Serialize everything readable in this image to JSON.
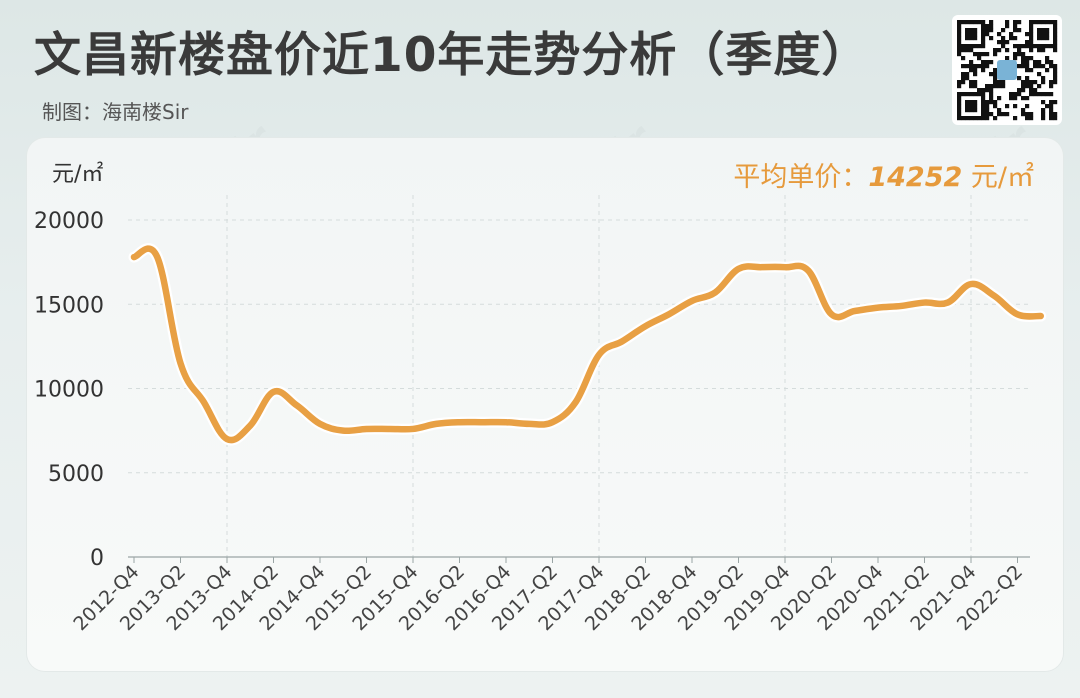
{
  "header": {
    "title": "文昌新楼盘价近10年走势分析（季度）",
    "subtitle": "制图：海南楼Sir"
  },
  "watermark": "@海南楼Sir",
  "unit_label": "元/㎡",
  "average": {
    "label": "平均单价：",
    "value": "14252",
    "unit": "元/㎡"
  },
  "colors": {
    "line": "#e8a044",
    "accent": "#e69a3c",
    "grid": "#d5dcdc"
  },
  "chart_data": {
    "type": "line",
    "title": "文昌新楼盘价近10年走势分析（季度）",
    "ylabel": "元/㎡",
    "ylim": [
      0,
      20000
    ],
    "yticks": [
      0,
      5000,
      10000,
      15000,
      20000
    ],
    "x_tick_labels": [
      "2012-Q4",
      "2013-Q2",
      "2013-Q4",
      "2014-Q2",
      "2014-Q4",
      "2015-Q2",
      "2015-Q4",
      "2016-Q2",
      "2016-Q4",
      "2017-Q2",
      "2017-Q4",
      "2018-Q2",
      "2018-Q4",
      "2019-Q2",
      "2019-Q4",
      "2020-Q2",
      "2020-Q4",
      "2021-Q2",
      "2021-Q4",
      "2022-Q2"
    ],
    "x": [
      "2012-Q4",
      "2013-Q1",
      "2013-Q2",
      "2013-Q3",
      "2013-Q4",
      "2014-Q1",
      "2014-Q2",
      "2014-Q3",
      "2014-Q4",
      "2015-Q1",
      "2015-Q2",
      "2015-Q3",
      "2015-Q4",
      "2016-Q1",
      "2016-Q2",
      "2016-Q3",
      "2016-Q4",
      "2017-Q1",
      "2017-Q2",
      "2017-Q3",
      "2017-Q4",
      "2018-Q1",
      "2018-Q2",
      "2018-Q3",
      "2018-Q4",
      "2019-Q1",
      "2019-Q2",
      "2019-Q3",
      "2019-Q4",
      "2020-Q1",
      "2020-Q2",
      "2020-Q3",
      "2020-Q4",
      "2021-Q1",
      "2021-Q2",
      "2021-Q3",
      "2021-Q4",
      "2022-Q1",
      "2022-Q2",
      "2022-Q3"
    ],
    "series": [
      {
        "values": [
          17800,
          17800,
          11500,
          9200,
          7000,
          7800,
          9800,
          9000,
          7900,
          7500,
          7600,
          7600,
          7600,
          7900,
          8000,
          8000,
          8000,
          7900,
          8000,
          9200,
          12000,
          12800,
          13700,
          14400,
          15200,
          15700,
          17100,
          17200,
          17200,
          17000,
          14400,
          14600,
          14800,
          14900,
          15100,
          15100,
          16200,
          15500,
          14400,
          14300
        ]
      }
    ],
    "grid": true,
    "legend": "none"
  }
}
